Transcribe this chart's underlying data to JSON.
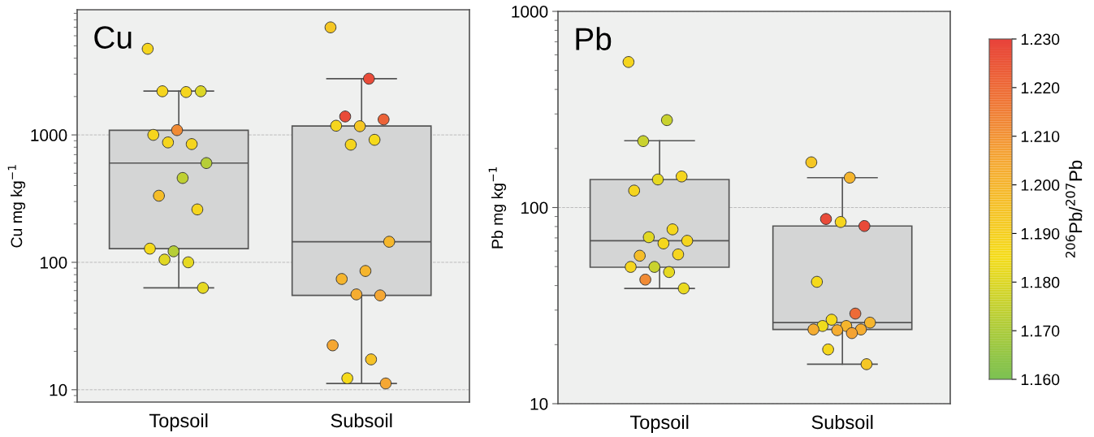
{
  "chart_data": [
    {
      "type": "box",
      "title": "Cu",
      "ylabel": "Cu mg kg$^{−1}$",
      "categories": [
        "Topsoil",
        "Subsoil"
      ],
      "boxes": [
        {
          "low": 63,
          "q1": 128,
          "median": 601,
          "q3": 1087,
          "high": 2210
        },
        {
          "low": 11.2,
          "q1": 55,
          "median": 145,
          "q3": 1175,
          "high": 2760
        }
      ],
      "series": [
        {
          "type": "scatter",
          "x": [
            "Topsoil",
            "Topsoil",
            "Topsoil",
            "Topsoil",
            "Topsoil",
            "Topsoil",
            "Topsoil",
            "Topsoil",
            "Topsoil",
            "Topsoil",
            "Topsoil",
            "Topsoil",
            "Topsoil",
            "Topsoil",
            "Topsoil",
            "Topsoil",
            "Topsoil"
          ],
          "values": [
            4740,
            2170,
            2200,
            2200,
            1090,
            1000,
            847,
            873,
            601,
            459,
            333,
            260,
            122,
            128,
            100,
            105,
            63
          ],
          "colors": [
            "#f5d51e",
            "#f5d51e",
            "#f5d51e",
            "#dcd626",
            "#f18b35",
            "#f5d51e",
            "#f5d51e",
            "#f5d51e",
            "#b6ce37",
            "#bfd033",
            "#f5bd29",
            "#f5d51e",
            "#b6ce37",
            "#f5da1b",
            "#e6d921",
            "#e1d823",
            "#e6d921"
          ]
        },
        {
          "type": "scatter",
          "x": [
            "Subsoil",
            "Subsoil",
            "Subsoil",
            "Subsoil",
            "Subsoil",
            "Subsoil",
            "Subsoil",
            "Subsoil",
            "Subsoil",
            "Subsoil",
            "Subsoil",
            "Subsoil",
            "Subsoil",
            "Subsoil",
            "Subsoil",
            "Subsoil",
            "Subsoil"
          ],
          "values": [
            6980,
            2760,
            1395,
            1322,
            1170,
            1180,
            915,
            838,
            145,
            85.5,
            74,
            55,
            56,
            22.3,
            17.3,
            12.3,
            11.2
          ],
          "colors": [
            "#f5c724",
            "#e94b39",
            "#e94b39",
            "#ec6338",
            "#f5c724",
            "#f5d51e",
            "#f5da1b",
            "#f5d51e",
            "#f5b72c",
            "#f5b52d",
            "#f5b52d",
            "#f5a733",
            "#f5ad31",
            "#f5a733",
            "#f5c227",
            "#f5da1b",
            "#f5a733"
          ]
        }
      ],
      "ylim": [
        8,
        9600
      ],
      "yticks": [
        10,
        100,
        1000
      ],
      "log": true,
      "grid": "y"
    },
    {
      "type": "box",
      "title": "Pb",
      "ylabel": "Pb mg kg$^{−1}$",
      "categories": [
        "Topsoil",
        "Subsoil"
      ],
      "boxes": [
        {
          "low": 38.7,
          "q1": 49.6,
          "median": 67.7,
          "q3": 139,
          "high": 219
        },
        {
          "low": 15.9,
          "q1": 23.9,
          "median": 25.9,
          "q3": 80.5,
          "high": 142
        }
      ],
      "series": [
        {
          "type": "scatter",
          "x": [
            "Topsoil",
            "Topsoil",
            "Topsoil",
            "Topsoil",
            "Topsoil",
            "Topsoil",
            "Topsoil",
            "Topsoil",
            "Topsoil",
            "Topsoil",
            "Topsoil",
            "Topsoil",
            "Topsoil",
            "Topsoil",
            "Topsoil",
            "Topsoil",
            "Topsoil"
          ],
          "values": [
            552,
            279,
            218,
            144,
            139,
            122,
            77.4,
            70.6,
            67.7,
            65.6,
            56.8,
            57.7,
            49.8,
            49.8,
            46.9,
            42.9,
            38.7
          ],
          "colors": [
            "#f5d51e",
            "#c9d22e",
            "#c9d22e",
            "#f5d51e",
            "#e6d921",
            "#f5d51e",
            "#f5d71c",
            "#e1d823",
            "#f5d51e",
            "#f5d71c",
            "#f5bd29",
            "#f5d51e",
            "#c9d22e",
            "#f5d51e",
            "#e6d921",
            "#f18b35",
            "#eada1f"
          ]
        },
        {
          "type": "scatter",
          "x": [
            "Subsoil",
            "Subsoil",
            "Subsoil",
            "Subsoil",
            "Subsoil",
            "Subsoil",
            "Subsoil",
            "Subsoil",
            "Subsoil",
            "Subsoil",
            "Subsoil",
            "Subsoil",
            "Subsoil",
            "Subsoil",
            "Subsoil",
            "Subsoil",
            "Subsoil"
          ],
          "values": [
            170,
            142,
            87.4,
            80.5,
            84.4,
            41.8,
            28.8,
            26.8,
            25.9,
            24.9,
            24.9,
            23.9,
            23.7,
            23.9,
            22.9,
            18.9,
            15.9
          ],
          "colors": [
            "#f5c724",
            "#f5b52d",
            "#e94b39",
            "#e94b39",
            "#f5d51e",
            "#f5da1b",
            "#ed6b37",
            "#f5da1b",
            "#f5b52d",
            "#f5b52d",
            "#efdb1d",
            "#f5ad31",
            "#f5ad31",
            "#f5ad31",
            "#f4a333",
            "#f5d71c",
            "#f5c724"
          ]
        }
      ],
      "ylim": [
        10,
        1000
      ],
      "yticks": [
        10,
        100,
        1000
      ],
      "log": true,
      "grid": "y",
      "clim": [
        1.16,
        1.23
      ],
      "clabel": "$^{206}$Pb/$^{207}$Pb",
      "cticks": [
        {
          "value": 1.16,
          "label": "1.160"
        },
        {
          "value": 1.17,
          "label": "1.170"
        },
        {
          "value": 1.18,
          "label": "1.180"
        },
        {
          "value": 1.19,
          "label": "1.190"
        },
        {
          "value": 1.2,
          "label": "1.200"
        },
        {
          "value": 1.21,
          "label": "1.210"
        },
        {
          "value": 1.22,
          "label": "1.220"
        },
        {
          "value": 1.23,
          "label": "1.230"
        }
      ]
    }
  ]
}
